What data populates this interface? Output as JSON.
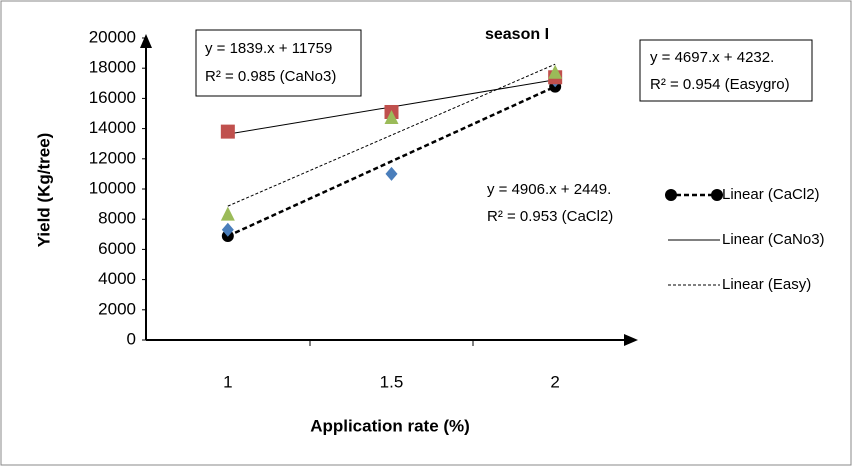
{
  "chart_data": {
    "type": "scatter",
    "title": "season I",
    "x_label": "Application rate (%)",
    "y_label": "Yield   (Kg/tree)",
    "categories": [
      "1",
      "1.5",
      "2"
    ],
    "ylim": [
      0,
      20000
    ],
    "yticks": [
      0,
      2000,
      4000,
      6000,
      8000,
      10000,
      12000,
      14000,
      16000,
      18000,
      20000
    ],
    "series": [
      {
        "name": "Linear (CaCl2)",
        "color": "#4a7ebb",
        "values": [
          7300,
          11000,
          17200
        ]
      },
      {
        "name": "Linear (CaNo3)",
        "color": "#c0504d",
        "values": [
          13800,
          15100,
          17400
        ]
      },
      {
        "name": "Linear (Easy)",
        "color": "#9bbb59",
        "values": [
          8300,
          14700,
          17700
        ]
      }
    ],
    "annotations": [
      "y = 1839.x + 11759",
      "R² = 0.985 (CaNo3)",
      "y = 4697.x + 4232.",
      "R² = 0.954 (Easygro)",
      "y = 4906.x + 2449.",
      "R² = 0.953 (CaCl2)"
    ]
  }
}
